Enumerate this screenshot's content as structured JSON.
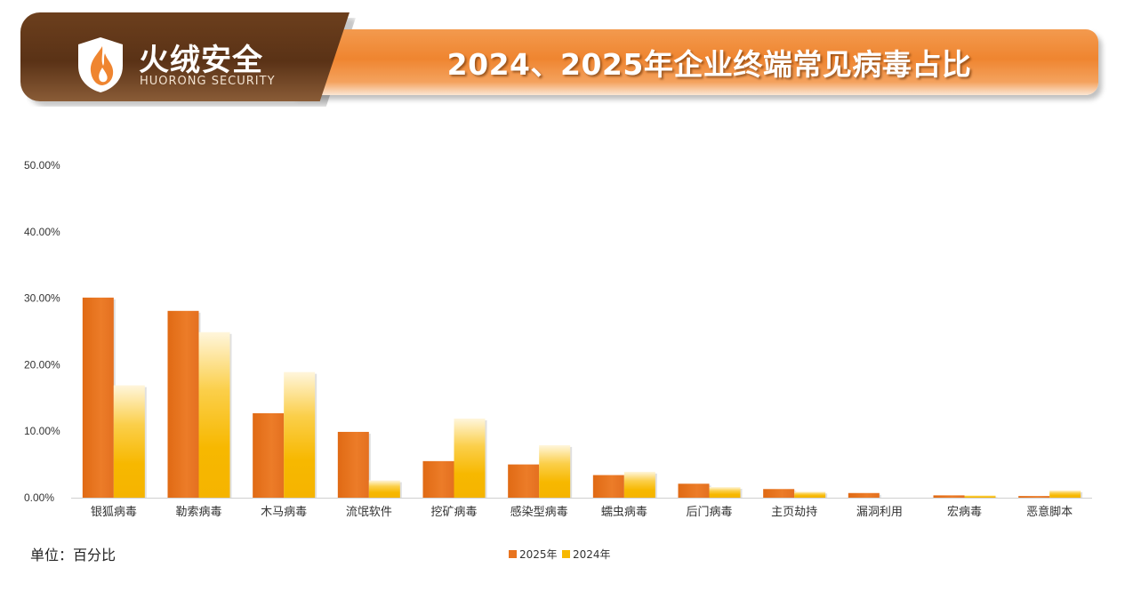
{
  "header": {
    "brand_name": "火绒安全",
    "brand_sub": "HUORONG SECURITY",
    "title": "2024、2025年企业终端常见病毒占比",
    "colors": {
      "brand_dark": "#5a3216",
      "banner_orange": "#ef8530"
    }
  },
  "unit_label": "单位：百分比",
  "chart_data": {
    "type": "bar",
    "title": "2024、2025年企业终端常见病毒占比",
    "categories": [
      "银狐病毒",
      "勒索病毒",
      "木马病毒",
      "流氓软件",
      "挖矿病毒",
      "感染型病毒",
      "蠕虫病毒",
      "后门病毒",
      "主页劫持",
      "漏洞利用",
      "宏病毒",
      "恶意脚本"
    ],
    "series": [
      {
        "name": "2025年",
        "color": "#e8741f",
        "values": [
          30.1,
          28.1,
          12.7,
          9.9,
          5.5,
          5.0,
          3.4,
          2.1,
          1.3,
          0.7,
          0.35,
          0.25
        ]
      },
      {
        "name": "2024年",
        "color": "#f7b800",
        "values": [
          16.9,
          24.9,
          18.9,
          2.6,
          11.9,
          7.9,
          3.9,
          1.6,
          0.9,
          0.0,
          0.35,
          1.1
        ]
      }
    ],
    "yticks": [
      "0.00%",
      "10.00%",
      "20.00%",
      "30.00%",
      "40.00%",
      "50.00%"
    ],
    "ylim": [
      0,
      50
    ],
    "xlabel": "",
    "ylabel": "",
    "legend_position": "bottom",
    "grid": false
  }
}
